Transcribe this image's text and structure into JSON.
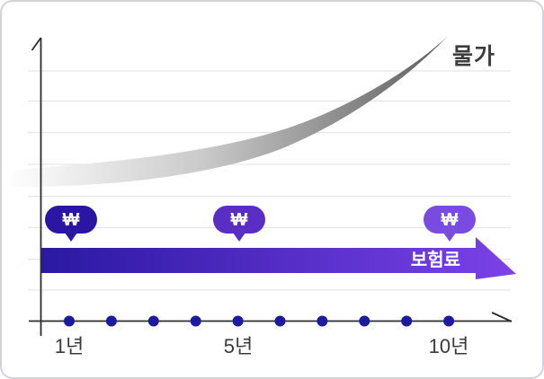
{
  "chart_data": {
    "type": "line",
    "title": "",
    "x": [
      1,
      2,
      3,
      4,
      5,
      6,
      7,
      8,
      9,
      10
    ],
    "x_unit": "년",
    "x_tick_labels_shown": [
      "1년",
      "5년",
      "10년"
    ],
    "series": [
      {
        "name": "물가",
        "style": "gray-gradient-band",
        "trend": "exponentially-rising",
        "values_relative": [
          1.0,
          1.02,
          1.06,
          1.12,
          1.2,
          1.35,
          1.55,
          1.85,
          2.25,
          2.8
        ]
      },
      {
        "name": "보험료",
        "style": "flat-solid-arrow",
        "trend": "constant",
        "values_relative": [
          1,
          1,
          1,
          1,
          1,
          1,
          1,
          1,
          1,
          1
        ]
      }
    ],
    "annotations": [
      {
        "type": "money-bubble",
        "symbol": "₩",
        "at_year": 1
      },
      {
        "type": "money-bubble",
        "symbol": "₩",
        "at_year": 5
      },
      {
        "type": "money-bubble",
        "symbol": "₩",
        "at_year": 10
      }
    ],
    "grid": true,
    "legend_position": "inline-labels"
  },
  "labels": {
    "price_curve": "물가",
    "premium_arrow": "보험료",
    "won_symbol": "₩"
  },
  "x_axis": {
    "dot_count": 10,
    "ticks": [
      {
        "label": "1년",
        "year": 1
      },
      {
        "label": "5년",
        "year": 5
      },
      {
        "label": "10년",
        "year": 10
      }
    ]
  },
  "colors": {
    "bubbles": [
      "#2b16a3",
      "#5a2ec5",
      "#7a4be0"
    ],
    "arrow_start": "#2a18a2",
    "arrow_end": "#7c42e8",
    "curve_start": "#ffffff",
    "curve_mid": "#c9c9c9",
    "curve_end": "#5d5d5d",
    "dot": "#1c1a9e",
    "grid": "#e5e5e8",
    "axis": "#2c2c2c",
    "text": "#3a3a3a"
  }
}
